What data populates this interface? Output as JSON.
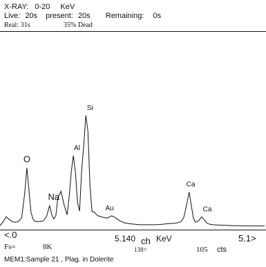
{
  "header": {
    "xray_label": "X-RAY:",
    "range": "0-20",
    "range_unit": "KeV",
    "live_label": "Live:",
    "live_value": "20s",
    "present_label": "present:",
    "present_value": "20s",
    "remaining_label": "Remaining:",
    "remaining_value": "0s",
    "real_label": "Real: 31s",
    "dead_label": "35% Dead"
  },
  "footer": {
    "x_start": "<.0",
    "cursor_kev": "5.140",
    "ch_label": "ch",
    "kev_label": "KeV",
    "x_end": "5.1>",
    "fs_label": "Fs=",
    "fs_value": "8K",
    "channel": "138=",
    "counts": "105",
    "cts_label": "cts",
    "sample": "MEM1:Sample 21 , Plag. in Dolerite"
  },
  "chart_data": {
    "type": "line",
    "title": "",
    "xlabel": "KeV",
    "ylabel": "",
    "xlim": [
      0,
      5.12
    ],
    "ylim": [
      0,
      8000
    ],
    "x": [
      0.0,
      0.06,
      0.12,
      0.18,
      0.24,
      0.3,
      0.36,
      0.42,
      0.48,
      0.52,
      0.56,
      0.6,
      0.64,
      0.68,
      0.72,
      0.78,
      0.84,
      0.9,
      0.96,
      1.0,
      1.04,
      1.08,
      1.12,
      1.18,
      1.24,
      1.3,
      1.34,
      1.38,
      1.42,
      1.46,
      1.5,
      1.54,
      1.58,
      1.62,
      1.66,
      1.7,
      1.74,
      1.78,
      1.82,
      1.86,
      1.9,
      1.96,
      2.02,
      2.08,
      2.12,
      2.16,
      2.22,
      2.3,
      2.4,
      2.5,
      2.6,
      2.7,
      2.8,
      2.9,
      3.0,
      3.1,
      3.2,
      3.3,
      3.4,
      3.5,
      3.56,
      3.62,
      3.66,
      3.7,
      3.74,
      3.78,
      3.84,
      3.9,
      3.96,
      4.01,
      4.06,
      4.12,
      4.2,
      4.3,
      4.4,
      4.5,
      4.6,
      4.7,
      4.8,
      4.9,
      5.0,
      5.12
    ],
    "y": [
      160,
      320,
      520,
      410,
      320,
      300,
      330,
      480,
      1500,
      2500,
      1600,
      700,
      420,
      330,
      330,
      330,
      360,
      520,
      980,
      620,
      430,
      560,
      1300,
      1550,
      1000,
      600,
      1350,
      2350,
      3000,
      2300,
      1100,
      750,
      2400,
      3400,
      4620,
      4000,
      1800,
      720,
      720,
      620,
      560,
      520,
      480,
      470,
      520,
      560,
      500,
      380,
      280,
      240,
      220,
      200,
      200,
      200,
      200,
      210,
      230,
      250,
      260,
      320,
      520,
      1100,
      1520,
      1000,
      480,
      300,
      350,
      520,
      380,
      250,
      220,
      200,
      190,
      180,
      170,
      160,
      160,
      150,
      150,
      150,
      150,
      150
    ],
    "peak_labels": [
      {
        "label": "O",
        "x": 0.52,
        "y": 2500
      },
      {
        "label": "Na",
        "x": 1.04,
        "y": 980
      },
      {
        "label": "Al",
        "x": 1.49,
        "y": 3000
      },
      {
        "label": "Si",
        "x": 1.74,
        "y": 4620
      },
      {
        "label": "Au",
        "x": 2.12,
        "y": 560
      },
      {
        "label": "Ca",
        "x": 3.69,
        "y": 1520
      },
      {
        "label": "Ca",
        "x": 4.01,
        "y": 520
      }
    ],
    "grid": false
  }
}
